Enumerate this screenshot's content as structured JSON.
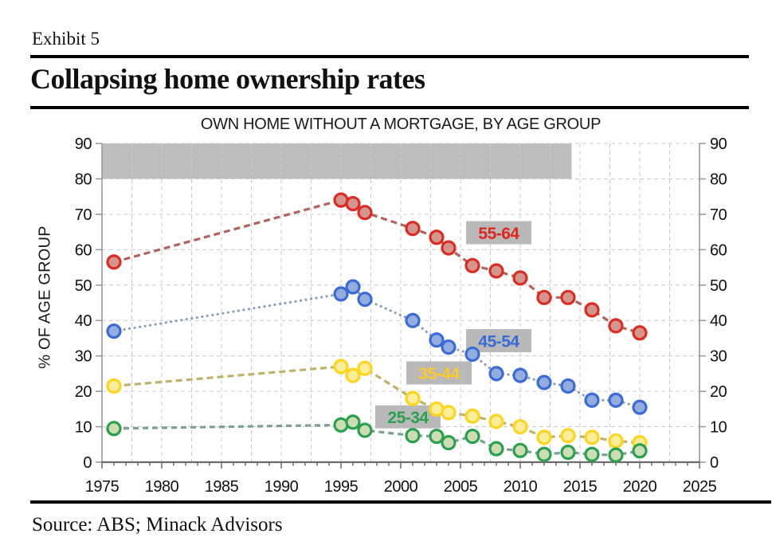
{
  "header": {
    "exhibit": "Exhibit 5",
    "title": "Collapsing home ownership rates"
  },
  "source_note": "Source: ABS; Minack Advisors",
  "chart_data": {
    "type": "scatter",
    "title": "OWN HOME WITHOUT A MORTGAGE, BY AGE GROUP",
    "ylabel": "% OF AGE GROUP",
    "xlim": [
      1975,
      2025
    ],
    "ylim": [
      0,
      90
    ],
    "x_tick_labels": [
      1975,
      1980,
      1985,
      1990,
      1995,
      2000,
      2005,
      2010,
      2015,
      2020,
      2025
    ],
    "x_minor_tick_interval": 1,
    "x_grid_interval": 2.5,
    "y_ticks": [
      0,
      10,
      20,
      30,
      40,
      50,
      60,
      70,
      80,
      90
    ],
    "grid_on": true,
    "legend_position": "inline-labels",
    "shaded_band": {
      "x0": 1975,
      "x1": 2014.3,
      "y0": 80,
      "y1": 90,
      "color": "#bdbdbd"
    },
    "x": [
      1976,
      1995,
      1996,
      1997,
      2001,
      2003,
      2004,
      2006,
      2008,
      2010,
      2012,
      2014,
      2016,
      2018,
      2020
    ],
    "series": [
      {
        "name": "55-64",
        "values": [
          56.5,
          74,
          73,
          70.5,
          66,
          63.5,
          60.5,
          55.5,
          54,
          52,
          46.5,
          46.5,
          43,
          38.5,
          36.5
        ],
        "line_color": "#b2635c",
        "line_dash": "8 5",
        "line_cap": "butt",
        "marker_stroke": "#dd2b22",
        "marker_fill": "#d2968f",
        "label": {
          "text": "55-64",
          "x": 2008.2,
          "y": 64.8,
          "color": "#e0261f"
        }
      },
      {
        "name": "45-54",
        "values": [
          37,
          47.5,
          49.5,
          46,
          40,
          34.5,
          32.5,
          30.5,
          25,
          24.5,
          22.5,
          21.5,
          17.5,
          17.5,
          15.5
        ],
        "line_color": "#8d9cbd",
        "line_dash": "0.1 6.5",
        "line_cap": "round",
        "marker_stroke": "#3a6bd8",
        "marker_fill": "#93aedd",
        "label": {
          "text": "45-54",
          "x": 2008.2,
          "y": 34.3,
          "color": "#3a6ad6"
        }
      },
      {
        "name": "35-44",
        "values": [
          21.5,
          27,
          24.5,
          26.5,
          18,
          15,
          14,
          13,
          11.5,
          10,
          7,
          7.5,
          7,
          6,
          5.5
        ],
        "line_color": "#bfb269",
        "line_dash": "8 5",
        "line_cap": "butt",
        "marker_stroke": "#fed51c",
        "marker_fill": "#fbee9b",
        "label": {
          "text": "35-44",
          "x": 2003.2,
          "y": 25.2,
          "color": "#fec929"
        }
      },
      {
        "name": "25-34",
        "values": [
          9.5,
          10.5,
          11.3,
          9,
          7.5,
          7.3,
          5.5,
          7.3,
          3.8,
          3.3,
          2.2,
          2.8,
          2.2,
          2,
          3.2
        ],
        "line_color": "#7ba193",
        "line_dash": "7 5",
        "line_cap": "butt",
        "marker_stroke": "#29a14e",
        "marker_fill": "#cfddb4",
        "label": {
          "text": "25-34",
          "x": 2000.6,
          "y": 12.8,
          "color": "#2aa24c"
        }
      }
    ],
    "label_chip_bg": "#b9b9b9",
    "colors": {
      "grid": "#c9c9d6",
      "spine": "#9a9a9a",
      "axis_bottom": "#6b6b6b",
      "text": "#111111"
    }
  }
}
